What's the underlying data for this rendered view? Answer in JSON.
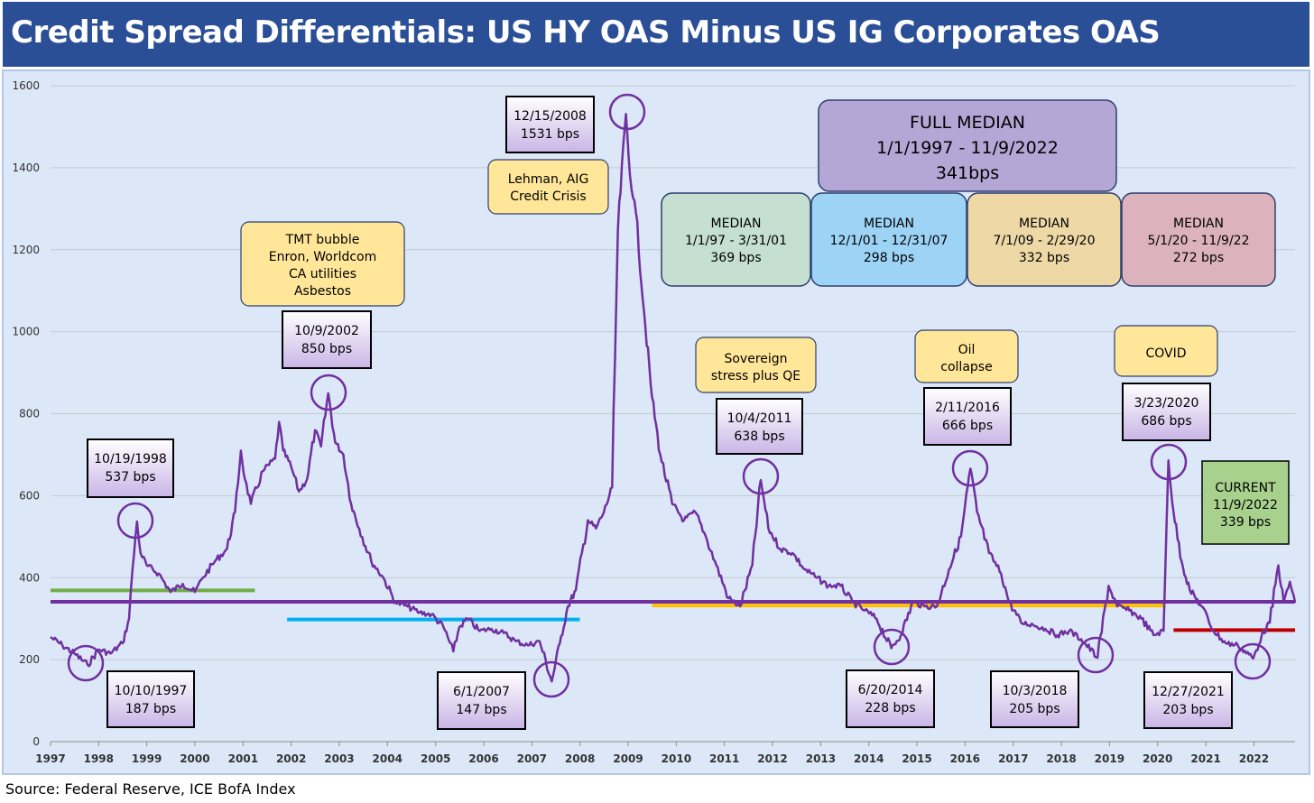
{
  "title": "Credit Spread Differentials: US HY OAS Minus US IG Corporates OAS",
  "source": "Source: Federal Reserve, ICE BofA Index",
  "colors": {
    "title_bg": "#2b4f96",
    "plot_bg": "#dce8f7",
    "series": "#7030a0",
    "full_median": "#7030a0",
    "median_1": "#70ad47",
    "median_2": "#00b0f0",
    "median_3": "#ffc000",
    "median_4": "#c00000"
  },
  "chart_data": {
    "type": "line",
    "x_range": [
      "1997-01-01",
      "2022-11-09"
    ],
    "ylim": [
      0,
      1600
    ],
    "y_ticks": [
      0,
      200,
      400,
      600,
      800,
      1000,
      1200,
      1400,
      1600
    ],
    "x_tick_labels": [
      "1997",
      "1998",
      "1999",
      "2000",
      "2001",
      "2002",
      "2003",
      "2004",
      "2005",
      "2006",
      "2007",
      "2008",
      "2009",
      "2010",
      "2011",
      "2012",
      "2013",
      "2014",
      "2015",
      "2016",
      "2017",
      "2018",
      "2019",
      "2020",
      "2021",
      "2022"
    ],
    "grid": true,
    "series": [
      {
        "points": [
          [
            "1997-01-01",
            255
          ],
          [
            "1997-04-01",
            235
          ],
          [
            "1997-07-01",
            215
          ],
          [
            "1997-10-10",
            187
          ],
          [
            "1998-01-01",
            225
          ],
          [
            "1998-04-01",
            215
          ],
          [
            "1998-07-01",
            240
          ],
          [
            "1998-08-20",
            300
          ],
          [
            "1998-09-15",
            420
          ],
          [
            "1998-10-19",
            537
          ],
          [
            "1998-11-15",
            460
          ],
          [
            "1999-01-01",
            430
          ],
          [
            "1999-04-01",
            410
          ],
          [
            "1999-07-01",
            365
          ],
          [
            "1999-10-01",
            385
          ],
          [
            "2000-01-01",
            365
          ],
          [
            "2000-03-01",
            400
          ],
          [
            "2000-06-01",
            440
          ],
          [
            "2000-09-01",
            470
          ],
          [
            "2000-11-01",
            560
          ],
          [
            "2000-12-15",
            710
          ],
          [
            "2001-01-15",
            640
          ],
          [
            "2001-03-01",
            580
          ],
          [
            "2001-06-01",
            660
          ],
          [
            "2001-09-01",
            690
          ],
          [
            "2001-10-01",
            780
          ],
          [
            "2001-11-01",
            710
          ],
          [
            "2002-01-01",
            670
          ],
          [
            "2002-03-01",
            610
          ],
          [
            "2002-05-01",
            640
          ],
          [
            "2002-07-01",
            760
          ],
          [
            "2002-08-15",
            720
          ],
          [
            "2002-10-09",
            850
          ],
          [
            "2002-12-01",
            730
          ],
          [
            "2003-02-01",
            700
          ],
          [
            "2003-04-01",
            580
          ],
          [
            "2003-06-01",
            520
          ],
          [
            "2003-09-01",
            440
          ],
          [
            "2003-12-01",
            400
          ],
          [
            "2004-03-01",
            340
          ],
          [
            "2004-06-01",
            330
          ],
          [
            "2004-09-01",
            315
          ],
          [
            "2004-12-01",
            310
          ],
          [
            "2005-03-01",
            280
          ],
          [
            "2005-05-15",
            220
          ],
          [
            "2005-07-01",
            280
          ],
          [
            "2005-09-01",
            300
          ],
          [
            "2005-12-01",
            270
          ],
          [
            "2006-03-01",
            275
          ],
          [
            "2006-06-01",
            265
          ],
          [
            "2006-09-01",
            245
          ],
          [
            "2006-12-01",
            235
          ],
          [
            "2007-03-01",
            245
          ],
          [
            "2007-06-01",
            147
          ],
          [
            "2007-08-01",
            240
          ],
          [
            "2007-10-01",
            330
          ],
          [
            "2007-12-01",
            370
          ],
          [
            "2008-03-01",
            540
          ],
          [
            "2008-05-01",
            520
          ],
          [
            "2008-07-01",
            560
          ],
          [
            "2008-09-01",
            620
          ],
          [
            "2008-10-15",
            1250
          ],
          [
            "2008-12-15",
            1531
          ],
          [
            "2009-01-15",
            1380
          ],
          [
            "2009-03-01",
            1290
          ],
          [
            "2009-05-01",
            1050
          ],
          [
            "2009-07-01",
            840
          ],
          [
            "2009-09-01",
            700
          ],
          [
            "2009-12-01",
            580
          ],
          [
            "2010-03-01",
            540
          ],
          [
            "2010-05-25",
            560
          ],
          [
            "2010-08-01",
            510
          ],
          [
            "2010-11-01",
            430
          ],
          [
            "2011-02-01",
            350
          ],
          [
            "2011-05-01",
            330
          ],
          [
            "2011-08-01",
            430
          ],
          [
            "2011-10-04",
            638
          ],
          [
            "2011-12-01",
            520
          ],
          [
            "2012-03-01",
            470
          ],
          [
            "2012-06-01",
            460
          ],
          [
            "2012-09-01",
            420
          ],
          [
            "2012-12-01",
            400
          ],
          [
            "2013-03-01",
            380
          ],
          [
            "2013-06-01",
            380
          ],
          [
            "2013-09-01",
            340
          ],
          [
            "2013-12-01",
            320
          ],
          [
            "2014-03-01",
            300
          ],
          [
            "2014-06-20",
            228
          ],
          [
            "2014-09-01",
            260
          ],
          [
            "2014-12-01",
            340
          ],
          [
            "2015-03-01",
            330
          ],
          [
            "2015-06-01",
            330
          ],
          [
            "2015-09-01",
            420
          ],
          [
            "2015-12-01",
            500
          ],
          [
            "2016-02-11",
            666
          ],
          [
            "2016-04-01",
            560
          ],
          [
            "2016-07-01",
            460
          ],
          [
            "2016-10-01",
            410
          ],
          [
            "2016-12-01",
            340
          ],
          [
            "2017-03-01",
            290
          ],
          [
            "2017-06-01",
            285
          ],
          [
            "2017-09-01",
            275
          ],
          [
            "2017-12-01",
            260
          ],
          [
            "2018-03-01",
            270
          ],
          [
            "2018-06-01",
            250
          ],
          [
            "2018-10-03",
            205
          ],
          [
            "2018-12-25",
            380
          ],
          [
            "2019-03-01",
            330
          ],
          [
            "2019-06-01",
            320
          ],
          [
            "2019-09-01",
            300
          ],
          [
            "2019-12-01",
            260
          ],
          [
            "2020-02-15",
            270
          ],
          [
            "2020-03-23",
            686
          ],
          [
            "2020-05-01",
            560
          ],
          [
            "2020-07-01",
            440
          ],
          [
            "2020-09-01",
            370
          ],
          [
            "2020-12-01",
            330
          ],
          [
            "2021-03-01",
            270
          ],
          [
            "2021-06-01",
            240
          ],
          [
            "2021-09-01",
            235
          ],
          [
            "2021-12-27",
            203
          ],
          [
            "2022-03-01",
            260
          ],
          [
            "2022-05-01",
            290
          ],
          [
            "2022-07-05",
            430
          ],
          [
            "2022-08-15",
            340
          ],
          [
            "2022-10-01",
            390
          ],
          [
            "2022-11-09",
            339
          ]
        ]
      }
    ],
    "median_lines": [
      {
        "key": "full",
        "start": "1997-01-01",
        "end": "2022-11-09",
        "value": 341
      },
      {
        "key": "m1",
        "start": "1997-01-01",
        "end": "2001-03-31",
        "value": 369
      },
      {
        "key": "m2",
        "start": "2001-12-01",
        "end": "2007-12-31",
        "value": 298
      },
      {
        "key": "m3",
        "start": "2009-07-01",
        "end": "2020-02-29",
        "value": 332
      },
      {
        "key": "m4",
        "start": "2020-05-01",
        "end": "2022-11-09",
        "value": 272
      }
    ],
    "median_boxes": [
      {
        "label": "FULL MEDIAN",
        "range": "1/1/1997 - 11/9/2022",
        "value": "341bps"
      },
      {
        "label": "MEDIAN",
        "range": "1/1/97 - 3/31/01",
        "value": "369 bps"
      },
      {
        "label": "MEDIAN",
        "range": "12/1/01 - 12/31/07",
        "value": "298 bps"
      },
      {
        "label": "MEDIAN",
        "range": "7/1/09 - 2/29/20",
        "value": "332 bps"
      },
      {
        "label": "MEDIAN",
        "range": "5/1/20 - 11/9/22",
        "value": "272 bps"
      }
    ],
    "point_labels": [
      {
        "date": "10/10/1997",
        "value": "187 bps"
      },
      {
        "date": "10/19/1998",
        "value": "537 bps"
      },
      {
        "date": "10/9/2002",
        "value": "850 bps"
      },
      {
        "date": "6/1/2007",
        "value": "147 bps"
      },
      {
        "date": "12/15/2008",
        "value": "1531 bps"
      },
      {
        "date": "10/4/2011",
        "value": "638 bps"
      },
      {
        "date": "6/20/2014",
        "value": "228 bps"
      },
      {
        "date": "2/11/2016",
        "value": "666 bps"
      },
      {
        "date": "10/3/2018",
        "value": "205 bps"
      },
      {
        "date": "3/23/2020",
        "value": "686 bps"
      },
      {
        "date": "12/27/2021",
        "value": "203 bps"
      }
    ],
    "event_labels": [
      {
        "lines": [
          "TMT bubble",
          "Enron, Worldcom",
          "CA utilities",
          "Asbestos"
        ]
      },
      {
        "lines": [
          "Lehman, AIG",
          "Credit Crisis"
        ]
      },
      {
        "lines": [
          "Sovereign",
          "stress plus  QE"
        ]
      },
      {
        "lines": [
          "Oil",
          "collapse"
        ]
      },
      {
        "lines": [
          "COVID"
        ]
      }
    ],
    "current_label": {
      "title": "CURRENT",
      "date": "11/9/2022",
      "value": "339 bps"
    }
  }
}
